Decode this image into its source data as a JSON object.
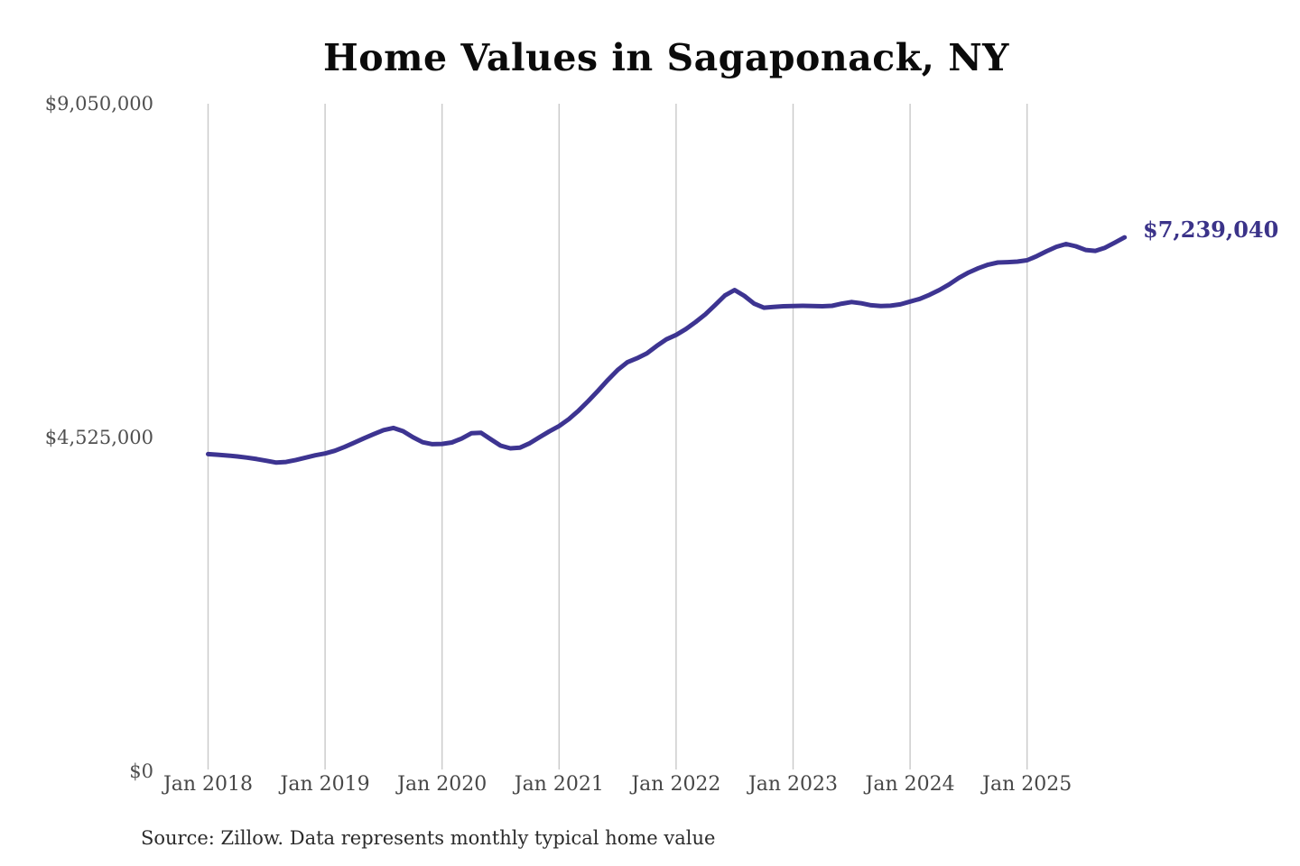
{
  "chart": {
    "title": "Home Values in Sagaponack, NY",
    "end_label": "$7,239,040",
    "source": "Source: Zillow. Data represents monthly typical home value"
  },
  "chart_data": {
    "type": "line",
    "title": "Home Values in Sagaponack, NY",
    "xlabel": "",
    "ylabel": "",
    "ylim": [
      0,
      9050000
    ],
    "grid": "vertical-only",
    "line_color": "#3d3491",
    "grid_color": "#c9c9c9",
    "axis_label_color": "#4f4f4f",
    "end_label": "$7,239,040",
    "end_label_color": "#3b3389",
    "x_ticks": [
      "Jan 2018",
      "Jan 2019",
      "Jan 2020",
      "Jan 2021",
      "Jan 2022",
      "Jan 2023",
      "Jan 2024",
      "Jan 2025"
    ],
    "y_ticks": [
      {
        "label": "$0",
        "value": 0
      },
      {
        "label": "$4,525,000",
        "value": 4525000
      },
      {
        "label": "$9,050,000",
        "value": 9050000
      }
    ],
    "series": [
      {
        "name": "Monthly typical home value",
        "start_month": "2018-01",
        "interval": "monthly",
        "final_value": 7239040,
        "values": [
          4300000,
          4292000,
          4281000,
          4268000,
          4252000,
          4233000,
          4209000,
          4185000,
          4193000,
          4220000,
          4252000,
          4284000,
          4308000,
          4345000,
          4398000,
          4455000,
          4515000,
          4572000,
          4625000,
          4655000,
          4610000,
          4530000,
          4462000,
          4435000,
          4438000,
          4458000,
          4510000,
          4583000,
          4588000,
          4500000,
          4415000,
          4378000,
          4388000,
          4448000,
          4530000,
          4608000,
          4680000,
          4775000,
          4890000,
          5020000,
          5160000,
          5305000,
          5440000,
          5545000,
          5600000,
          5665000,
          5765000,
          5855000,
          5915000,
          5995000,
          6090000,
          6195000,
          6320000,
          6450000,
          6525000,
          6445000,
          6340000,
          6285000,
          6295000,
          6305000,
          6308000,
          6310000,
          6308000,
          6305000,
          6310000,
          6340000,
          6362000,
          6345000,
          6318000,
          6308000,
          6312000,
          6330000,
          6368000,
          6405000,
          6460000,
          6525000,
          6600000,
          6688000,
          6762000,
          6820000,
          6868000,
          6898000,
          6902000,
          6910000,
          6928000,
          6985000,
          7050000,
          7110000,
          7148000,
          7118000,
          7068000,
          7055000,
          7098000,
          7168000,
          7239040
        ]
      }
    ]
  }
}
